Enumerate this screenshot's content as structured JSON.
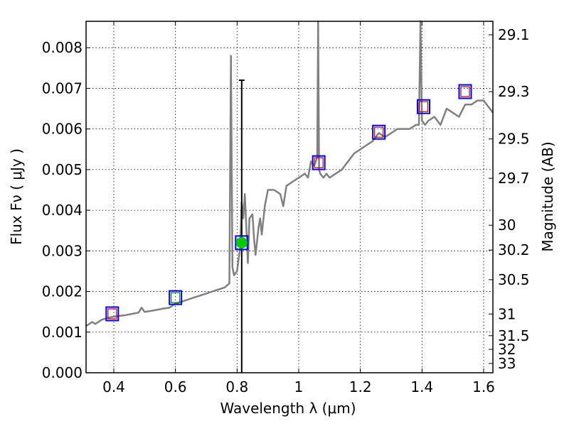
{
  "chart_data": {
    "type": "line",
    "xlabel": "Wavelength  λ (μm)",
    "ylabel_left": "Flux  Fν  ( μJy )",
    "ylabel_right": "Magnitude (AB)",
    "xlim": [
      0.31,
      1.63
    ],
    "ylim": [
      0.0,
      0.00865
    ],
    "grid": true,
    "x_ticks": [
      0.4,
      0.6,
      0.8,
      1.0,
      1.2,
      1.4,
      1.6
    ],
    "x_tick_labels": [
      "0.4",
      "0.6",
      "0.8",
      "1",
      "1.2",
      "1.4",
      "1.6"
    ],
    "y_ticks": [
      0.0,
      0.001,
      0.002,
      0.003,
      0.004,
      0.005,
      0.006,
      0.007,
      0.008
    ],
    "y_tick_labels": [
      "0.000",
      "0.001",
      "0.002",
      "0.003",
      "0.004",
      "0.005",
      "0.006",
      "0.007",
      "0.008"
    ],
    "mag_ticks": [
      29.1,
      29.3,
      29.5,
      29.7,
      30,
      30.2,
      30.5,
      31,
      31.5,
      32,
      33
    ],
    "mag_tick_labels": [
      "29.1",
      "29.3",
      "29.5",
      "29.7",
      "30",
      "30.2",
      "30.5",
      "31",
      "31.5",
      "32",
      "33"
    ],
    "colors": {
      "spectrum": "#808080",
      "obs_box": "#0000ff",
      "model_box": "#cc0000",
      "model_box_alt": "#008000",
      "detection": "#00cc00",
      "errorbar": "#000000"
    },
    "series": [
      {
        "name": "model spectrum",
        "x": [
          0.31,
          0.33,
          0.34,
          0.36,
          0.38,
          0.4,
          0.42,
          0.44,
          0.46,
          0.48,
          0.49,
          0.5,
          0.52,
          0.54,
          0.56,
          0.58,
          0.6,
          0.62,
          0.64,
          0.66,
          0.68,
          0.7,
          0.72,
          0.74,
          0.76,
          0.775,
          0.78,
          0.785,
          0.79,
          0.8,
          0.81,
          0.815,
          0.82,
          0.825,
          0.83,
          0.835,
          0.84,
          0.85,
          0.855,
          0.86,
          0.87,
          0.875,
          0.88,
          0.89,
          0.9,
          0.92,
          0.94,
          0.95,
          0.96,
          0.98,
          1.0,
          1.02,
          1.03,
          1.04,
          1.05,
          1.06,
          1.063,
          1.066,
          1.07,
          1.08,
          1.09,
          1.1,
          1.12,
          1.14,
          1.16,
          1.18,
          1.2,
          1.22,
          1.24,
          1.26,
          1.28,
          1.3,
          1.32,
          1.34,
          1.36,
          1.38,
          1.39,
          1.395,
          1.4,
          1.41,
          1.42,
          1.44,
          1.46,
          1.48,
          1.5,
          1.52,
          1.54,
          1.56,
          1.58,
          1.6,
          1.62,
          1.63
        ],
        "values": [
          0.00115,
          0.00125,
          0.0012,
          0.0013,
          0.00135,
          0.00138,
          0.0014,
          0.00142,
          0.00145,
          0.00148,
          0.0016,
          0.0015,
          0.00152,
          0.00155,
          0.00158,
          0.0016,
          0.0017,
          0.00175,
          0.0018,
          0.00185,
          0.0019,
          0.00195,
          0.002,
          0.00205,
          0.0021,
          0.0022,
          0.0078,
          0.0026,
          0.0024,
          0.0025,
          0.0031,
          0.0042,
          0.0038,
          0.0044,
          0.0036,
          0.0027,
          0.0038,
          0.0039,
          0.0033,
          0.0029,
          0.0036,
          0.0038,
          0.0034,
          0.0041,
          0.0045,
          0.0045,
          0.0044,
          0.0041,
          0.0046,
          0.0047,
          0.0048,
          0.0049,
          0.0048,
          0.0052,
          0.0051,
          0.0053,
          0.00865,
          0.005,
          0.0049,
          0.0048,
          0.0049,
          0.0048,
          0.0049,
          0.005,
          0.0052,
          0.0054,
          0.0055,
          0.0056,
          0.0057,
          0.0059,
          0.0058,
          0.0059,
          0.006,
          0.006,
          0.006,
          0.0061,
          0.0061,
          0.00865,
          0.0062,
          0.0061,
          0.0062,
          0.0063,
          0.0061,
          0.0065,
          0.0064,
          0.0063,
          0.0066,
          0.0066,
          0.0067,
          0.0067,
          0.0065,
          0.0064
        ]
      },
      {
        "name": "photometry",
        "points": [
          {
            "x": 0.395,
            "y": 0.00145,
            "model_color": "red"
          },
          {
            "x": 0.6,
            "y": 0.00185,
            "model_color": "green"
          },
          {
            "x": 0.815,
            "y": 0.0032,
            "model_color": "none"
          },
          {
            "x": 1.065,
            "y": 0.00517,
            "model_color": "red"
          },
          {
            "x": 1.26,
            "y": 0.00592,
            "model_color": "red"
          },
          {
            "x": 1.405,
            "y": 0.00655,
            "model_color": "red"
          },
          {
            "x": 1.54,
            "y": 0.00692,
            "model_color": "red"
          }
        ]
      },
      {
        "name": "detection",
        "points": [
          {
            "x": 0.815,
            "y": 0.0032,
            "y_upper": 0.0072,
            "y_lower": 0.0
          }
        ]
      }
    ]
  }
}
